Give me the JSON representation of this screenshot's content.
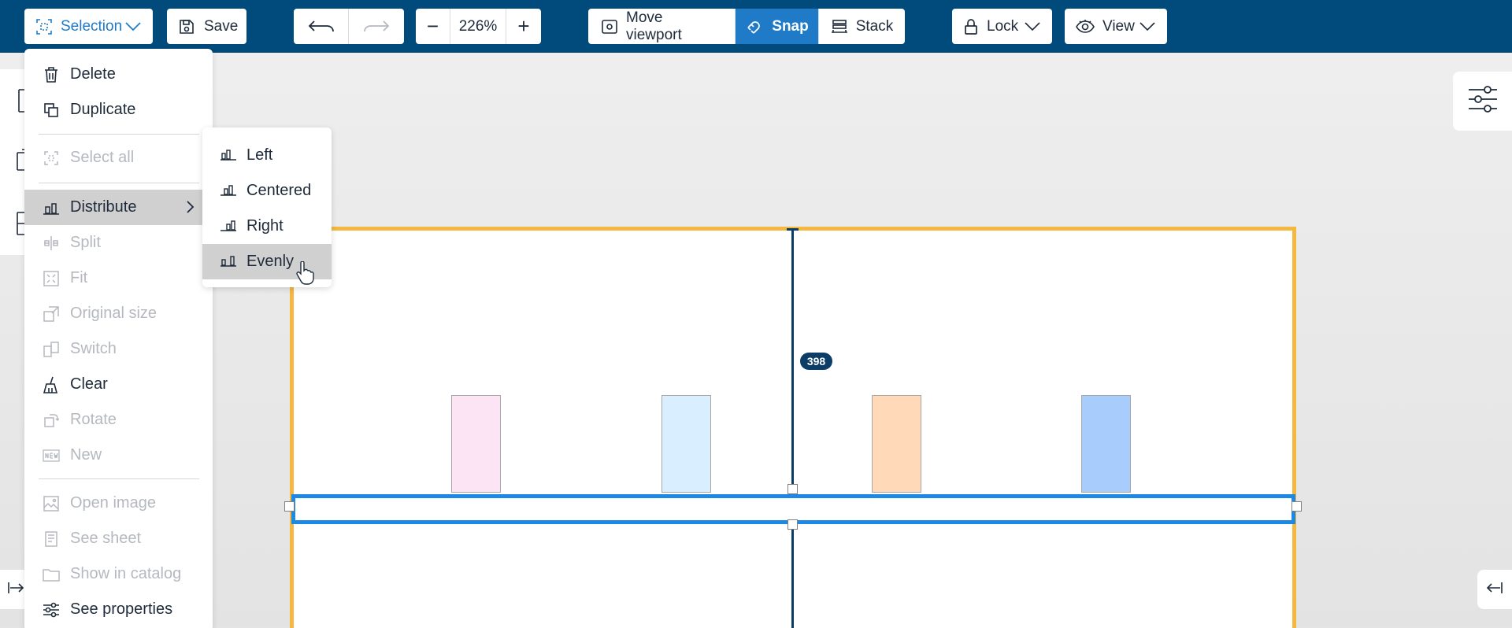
{
  "toolbar": {
    "selection_label": "Selection",
    "save_label": "Save",
    "zoom_value": "226%",
    "zoom_minus": "−",
    "zoom_plus": "+",
    "move_viewport_label": "Move viewport",
    "snap_label": "Snap",
    "stack_label": "Stack",
    "lock_label": "Lock",
    "view_label": "View"
  },
  "canvas": {
    "dimension_badge": "398",
    "block_colors": [
      "#fde4f4",
      "#d9efff",
      "#ffd9b8",
      "#a8ccfb"
    ],
    "selection_color": "#1e88e5",
    "frame_color": "#f4b73f"
  },
  "menu": {
    "delete": "Delete",
    "duplicate": "Duplicate",
    "select_all": "Select all",
    "distribute": "Distribute",
    "split": "Split",
    "fit": "Fit",
    "original_size": "Original size",
    "switch": "Switch",
    "clear": "Clear",
    "rotate": "Rotate",
    "new": "New",
    "open_image": "Open image",
    "see_sheet": "See sheet",
    "show_in_catalog": "Show in catalog",
    "see_properties": "See properties"
  },
  "submenu": {
    "left": "Left",
    "centered": "Centered",
    "right": "Right",
    "evenly": "Evenly"
  },
  "colors": {
    "toolbar_bg": "#004a7c",
    "accent": "#1f7bc8"
  }
}
